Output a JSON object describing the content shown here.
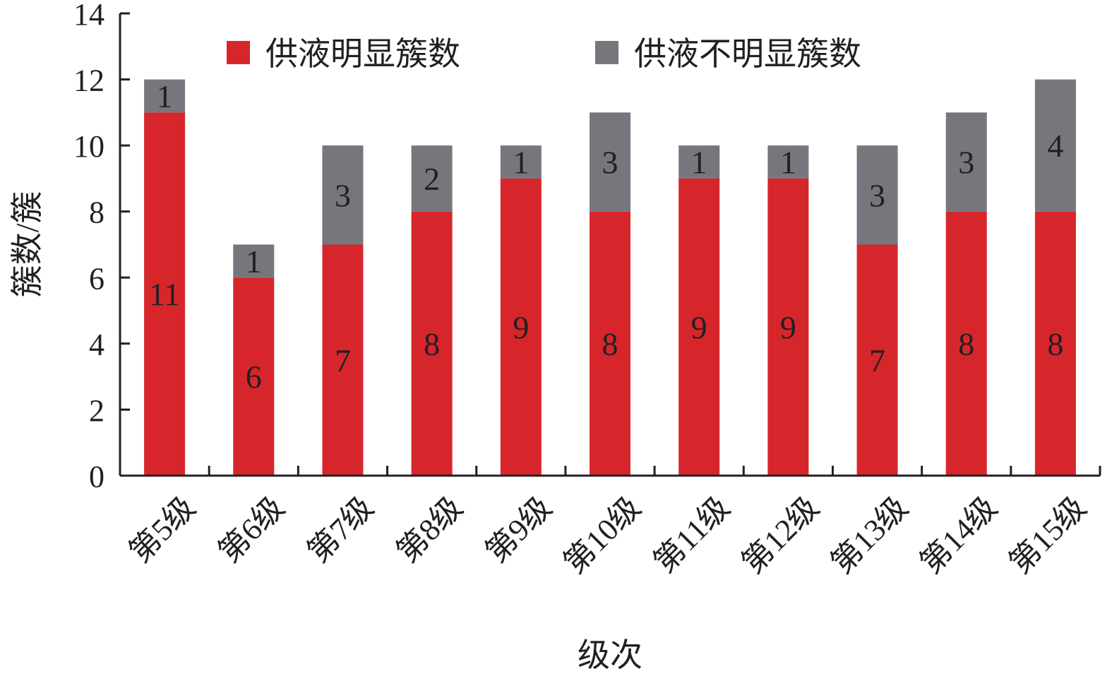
{
  "chart_data": {
    "type": "bar",
    "stacked": true,
    "categories": [
      "第5级",
      "第6级",
      "第7级",
      "第8级",
      "第9级",
      "第10级",
      "第11级",
      "第12级",
      "第13级",
      "第14级",
      "第15级"
    ],
    "series": [
      {
        "name": "供液明显簇数",
        "color": "#d7262b",
        "values": [
          11,
          6,
          7,
          8,
          9,
          8,
          9,
          9,
          7,
          8,
          8
        ]
      },
      {
        "name": "供液不明显簇数",
        "color": "#76777d",
        "values": [
          1,
          1,
          3,
          2,
          1,
          3,
          1,
          1,
          3,
          3,
          4
        ]
      }
    ],
    "title": "",
    "xlabel": "级次",
    "ylabel": "簇数/簇",
    "ylim": [
      0,
      14
    ],
    "yticks": [
      "0",
      "2",
      "4",
      "6",
      "8",
      "10",
      "12",
      "14"
    ],
    "grid": false,
    "legend": "top"
  }
}
